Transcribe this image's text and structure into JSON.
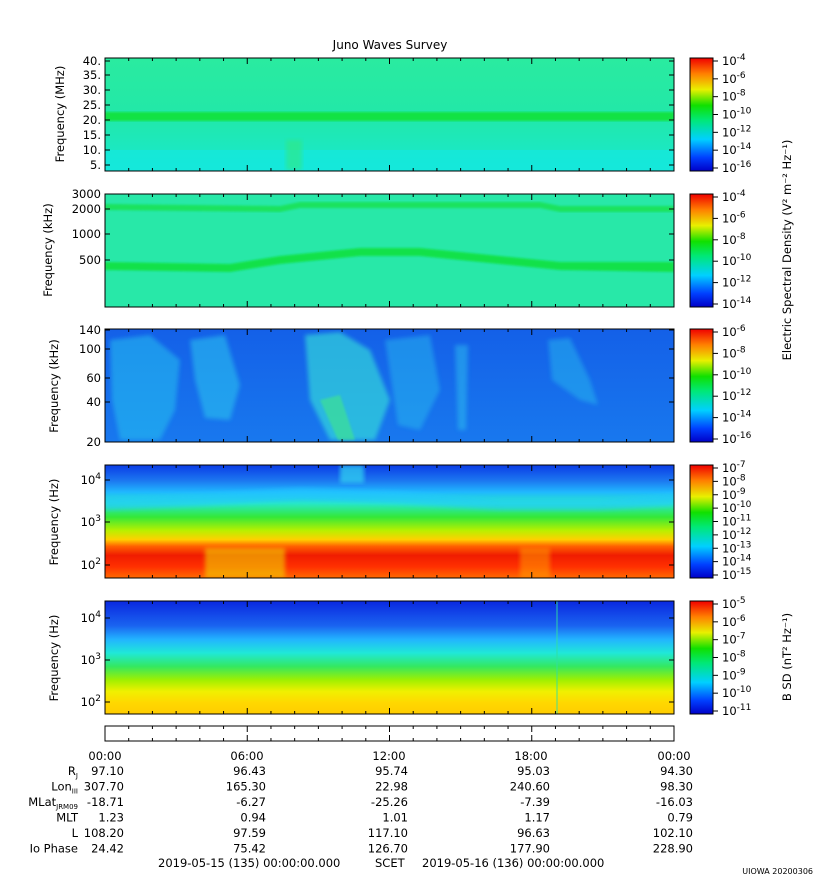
{
  "chart_data": [
    {
      "type": "heatmap",
      "title": "Juno Waves Survey",
      "ylabel": "Frequency (MHz)",
      "yticks": [
        "40.",
        "35.",
        "30.",
        "25.",
        "20.",
        "15.",
        "10.",
        "5."
      ],
      "colorbar": {
        "ticks": [
          "10-4",
          "10-6",
          "10-8",
          "10-10",
          "10-12",
          "10-14",
          "10-16"
        ]
      }
    },
    {
      "type": "heatmap",
      "ylabel": "Frequency (kHz)",
      "yticks": [
        "3000",
        "2000",
        "1000",
        "500"
      ],
      "colorbar": {
        "ticks": [
          "10-4",
          "10-6",
          "10-8",
          "10-10",
          "10-12",
          "10-14"
        ]
      }
    },
    {
      "type": "heatmap",
      "ylabel": "Frequency (kHz)",
      "yticks": [
        "140",
        "100",
        "60",
        "40",
        "20"
      ],
      "colorbar": {
        "ticks": [
          "10-6",
          "10-8",
          "10-10",
          "10-12",
          "10-14",
          "10-16"
        ]
      }
    },
    {
      "type": "heatmap",
      "ylabel": "Frequency (Hz)",
      "yticks": [
        "10^4",
        "10^3",
        "10^2"
      ],
      "colorbar": {
        "ticks": [
          "10-7",
          "10-8",
          "10-9",
          "10-10",
          "10-11",
          "10-12",
          "10-13",
          "10-14",
          "10-15"
        ]
      }
    },
    {
      "type": "heatmap",
      "ylabel": "Frequency (Hz)",
      "yticks": [
        "10^4",
        "10^3",
        "10^2"
      ],
      "colorbar": {
        "label": "B SD (nT² Hz⁻¹)",
        "ticks": [
          "10-5",
          "10-6",
          "10-7",
          "10-8",
          "10-9",
          "10-10",
          "10-11"
        ]
      }
    }
  ],
  "colorbar_label_shared": "Electric Spectral Density (V² m⁻² Hz⁻¹)",
  "time_axis": {
    "labels": [
      "00:00",
      "06:00",
      "12:00",
      "18:00",
      "00:00"
    ]
  },
  "ephemeris": [
    {
      "label": "R",
      "sub": "J",
      "values": [
        "97.10",
        "96.43",
        "95.74",
        "95.03",
        "94.30"
      ]
    },
    {
      "label": "Lon",
      "sub": "III",
      "values": [
        "307.70",
        "165.30",
        "22.98",
        "240.60",
        "98.30"
      ]
    },
    {
      "label": "MLat",
      "sub": "JRM09",
      "values": [
        "-18.71",
        "-6.27",
        "-25.26",
        "-7.39",
        "-16.03"
      ]
    },
    {
      "label": "MLT",
      "sub": "",
      "values": [
        "1.23",
        "0.94",
        "1.01",
        "1.17",
        "0.79"
      ]
    },
    {
      "label": "L",
      "sub": "",
      "values": [
        "108.20",
        "97.59",
        "117.10",
        "96.63",
        "102.10"
      ]
    },
    {
      "label": "Io Phase",
      "sub": "",
      "values": [
        "24.42",
        "75.42",
        "126.70",
        "177.90",
        "228.90"
      ]
    }
  ],
  "footer": {
    "start": "2019-05-15 (135) 00:00:00.000",
    "scet": "SCET",
    "end": "2019-05-16 (136) 00:00:00.000",
    "stamp": "UIOWA 20200306"
  }
}
